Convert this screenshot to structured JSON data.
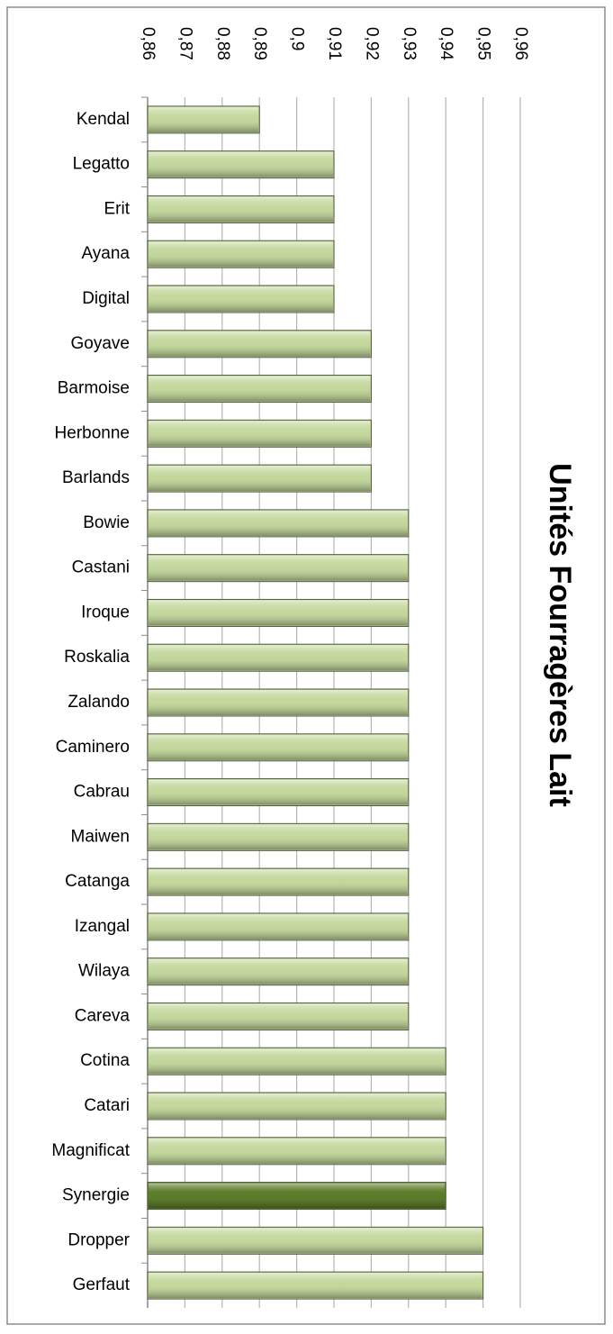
{
  "chart_data": {
    "type": "bar",
    "orientation": "horizontal",
    "title": "Unités Fourragères Lait",
    "categories": [
      "Kendal",
      "Legatto",
      "Erit",
      "Ayana",
      "Digital",
      "Goyave",
      "Barmoise",
      "Herbonne",
      "Barlands",
      "Bowie",
      "Castani",
      "Iroque",
      "Roskalia",
      "Zalando",
      "Caminero",
      "Cabrau",
      "Maiwen",
      "Catanga",
      "Izangal",
      "Wilaya",
      "Careva",
      "Cotina",
      "Catari",
      "Magnificat",
      "Synergie",
      "Dropper",
      "Gerfaut"
    ],
    "values": [
      0.89,
      0.91,
      0.91,
      0.91,
      0.91,
      0.92,
      0.92,
      0.92,
      0.92,
      0.93,
      0.93,
      0.93,
      0.93,
      0.93,
      0.93,
      0.93,
      0.93,
      0.93,
      0.93,
      0.93,
      0.93,
      0.94,
      0.94,
      0.94,
      0.94,
      0.95,
      0.95
    ],
    "colors": [
      "#c4d89e",
      "#c4d89e",
      "#c4d89e",
      "#c4d89e",
      "#c4d89e",
      "#c4d89e",
      "#c4d89e",
      "#c4d89e",
      "#c4d89e",
      "#c4d89e",
      "#c4d89e",
      "#c4d89e",
      "#c4d89e",
      "#c4d89e",
      "#c4d89e",
      "#c4d89e",
      "#c4d89e",
      "#c4d89e",
      "#c4d89e",
      "#c4d89e",
      "#c4d89e",
      "#c4d89e",
      "#c4d89e",
      "#c4d89e",
      "#5d7d2a",
      "#c4d89e",
      "#c4d89e"
    ],
    "xlim": [
      0.86,
      0.96
    ],
    "xticks": [
      {
        "value": 0.86,
        "label": "0,86"
      },
      {
        "value": 0.87,
        "label": "0,87"
      },
      {
        "value": 0.88,
        "label": "0,88"
      },
      {
        "value": 0.89,
        "label": "0,89"
      },
      {
        "value": 0.9,
        "label": "0,9"
      },
      {
        "value": 0.91,
        "label": "0,91"
      },
      {
        "value": 0.92,
        "label": "0,92"
      },
      {
        "value": 0.93,
        "label": "0,93"
      },
      {
        "value": 0.94,
        "label": "0,94"
      },
      {
        "value": 0.95,
        "label": "0,95"
      },
      {
        "value": 0.96,
        "label": "0,96"
      }
    ],
    "grid": true
  }
}
